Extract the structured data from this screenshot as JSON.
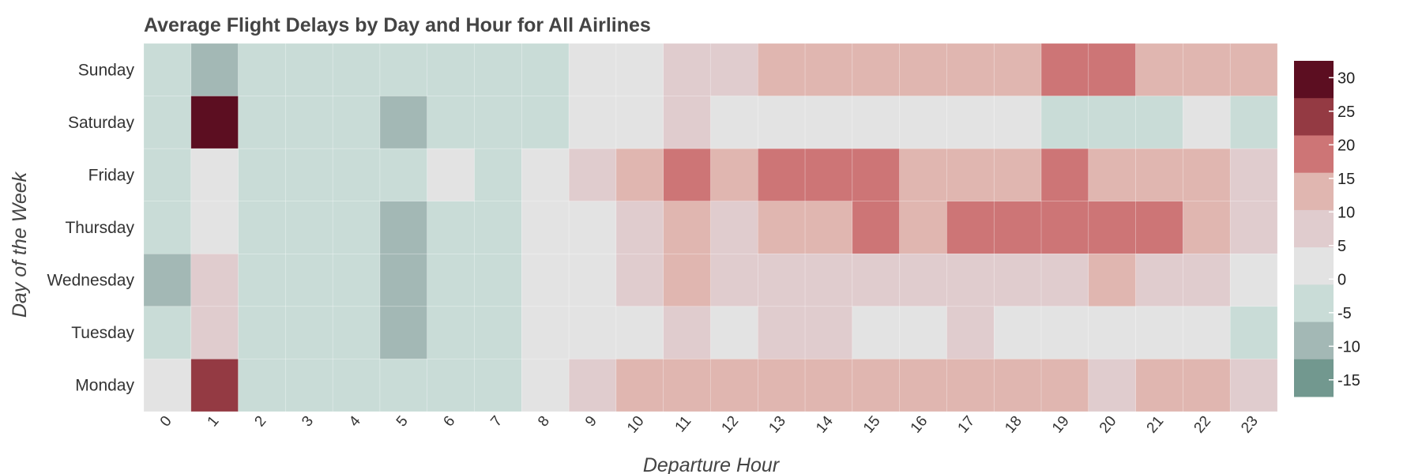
{
  "chart_data": {
    "type": "heatmap",
    "title": "Average Flight Delays by Day and Hour for All Airlines",
    "xlabel": "Departure Hour",
    "ylabel": "Day of the Week",
    "x_categories": [
      "0",
      "1",
      "2",
      "3",
      "4",
      "5",
      "6",
      "7",
      "8",
      "9",
      "10",
      "11",
      "12",
      "13",
      "14",
      "15",
      "16",
      "17",
      "18",
      "19",
      "20",
      "21",
      "22",
      "23"
    ],
    "y_categories": [
      "Sunday",
      "Saturday",
      "Friday",
      "Thursday",
      "Wednesday",
      "Tuesday",
      "Monday"
    ],
    "values": [
      [
        -2,
        -12,
        -2,
        -2,
        -2,
        -2,
        -2,
        -2,
        -2,
        3,
        3,
        8,
        8,
        13,
        13,
        13,
        13,
        13,
        13,
        18,
        18,
        13,
        13,
        13
      ],
      [
        -2,
        33,
        -2,
        -2,
        -2,
        -7,
        -2,
        -2,
        -2,
        3,
        3,
        8,
        3,
        3,
        3,
        3,
        3,
        3,
        3,
        -2,
        -2,
        -2,
        3,
        -2
      ],
      [
        -2,
        3,
        -2,
        -2,
        -2,
        -2,
        3,
        -2,
        3,
        8,
        13,
        18,
        13,
        18,
        18,
        18,
        13,
        13,
        13,
        18,
        13,
        13,
        13,
        8
      ],
      [
        -2,
        3,
        -2,
        -2,
        -2,
        -7,
        -2,
        -2,
        3,
        3,
        8,
        13,
        8,
        13,
        13,
        18,
        13,
        18,
        18,
        18,
        18,
        18,
        13,
        8
      ],
      [
        -7,
        8,
        -2,
        -2,
        -2,
        -7,
        -2,
        -2,
        3,
        3,
        8,
        13,
        8,
        8,
        8,
        8,
        8,
        8,
        8,
        8,
        13,
        8,
        8,
        3
      ],
      [
        -2,
        8,
        -2,
        -2,
        -2,
        -7,
        -2,
        -2,
        3,
        3,
        3,
        8,
        3,
        8,
        8,
        3,
        3,
        8,
        3,
        3,
        3,
        3,
        3,
        -2
      ],
      [
        3,
        23,
        -2,
        -2,
        -2,
        -2,
        -2,
        -2,
        3,
        8,
        13,
        13,
        13,
        13,
        13,
        13,
        13,
        13,
        13,
        13,
        8,
        13,
        13,
        8
      ]
    ],
    "colorbar": {
      "ticks": [
        30,
        25,
        20,
        15,
        10,
        5,
        0,
        -5,
        -10,
        -15
      ],
      "range": [
        -17.5,
        32.5
      ],
      "bins": [
        {
          "min": -17.5,
          "max": -12.5,
          "color": "#72988f"
        },
        {
          "min": -12.5,
          "max": -7.5,
          "color": "#a3b8b5"
        },
        {
          "min": -7.5,
          "max": -2.5,
          "color": "#a3b8b5"
        },
        {
          "min": -2.5,
          "max": 0.5,
          "color": "#c9dcd7"
        },
        {
          "min": 0.5,
          "max": 5.5,
          "color": "#e3e3e3"
        },
        {
          "min": 5.5,
          "max": 10.5,
          "color": "#e0ccce"
        },
        {
          "min": 10.5,
          "max": 15.5,
          "color": "#e0b6b0"
        },
        {
          "min": 15.5,
          "max": 20.5,
          "color": "#cd7576"
        },
        {
          "min": 20.5,
          "max": 25.5,
          "color": "#943a43"
        },
        {
          "min": 25.5,
          "max": 32.5,
          "color": "#5c0e21"
        }
      ],
      "display_colors": [
        "#5c0e21",
        "#943a43",
        "#cd7576",
        "#e0b6b0",
        "#e0ccce",
        "#e3e3e3",
        "#c9dcd7",
        "#a3b8b5",
        "#72988f"
      ]
    }
  }
}
